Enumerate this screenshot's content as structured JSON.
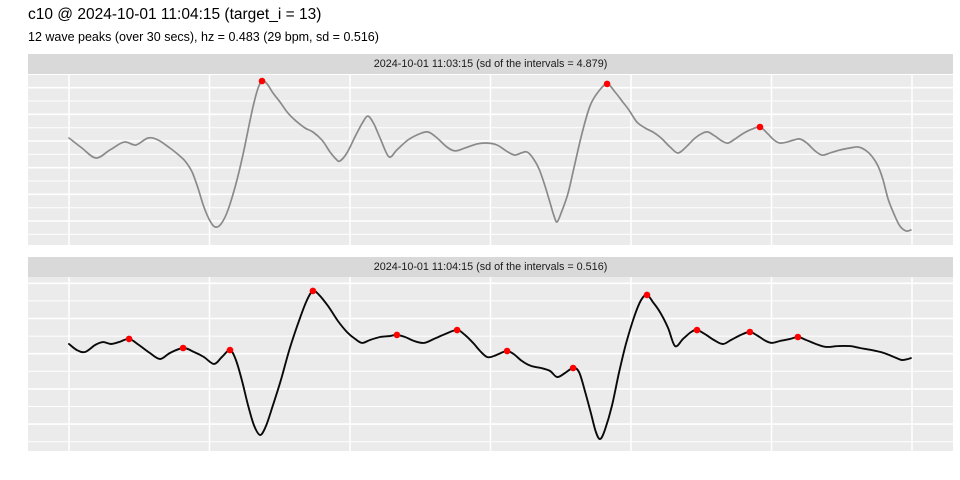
{
  "header": {
    "title": "c10 @ 2024-10-01 11:04:15 (target_i = 13)",
    "subtitle": "12 wave peaks (over 30 secs), hz = 0.483 (29 bpm, sd = 0.516)"
  },
  "colors": {
    "panel_bg": "#EBEBEB",
    "strip_bg": "#D9D9D9",
    "gridline": "#FFFFFF",
    "line_panel1": "#8A8A8A",
    "line_panel2": "#0A0A0A",
    "peak_dot": "#FF0000",
    "text": "#000000"
  },
  "chart_data": [
    {
      "type": "line",
      "strip_label": "2024-10-01 11:03:15 (sd of the intervals = 4.879)",
      "x_unit": "seconds",
      "x_range": [
        0,
        30
      ],
      "y_unit": "normalized amplitude (0 = panel bottom, 1 = panel top)",
      "line_color": "#8A8A8A",
      "peak_count": 3,
      "points": [
        [
          0,
          0.626
        ],
        [
          0.46,
          0.567
        ],
        [
          0.96,
          0.509
        ],
        [
          1.46,
          0.556
        ],
        [
          1.96,
          0.602
        ],
        [
          2.38,
          0.585
        ],
        [
          2.81,
          0.626
        ],
        [
          3.17,
          0.614
        ],
        [
          3.59,
          0.567
        ],
        [
          3.95,
          0.52
        ],
        [
          4.16,
          0.485
        ],
        [
          4.38,
          0.427
        ],
        [
          4.59,
          0.333
        ],
        [
          4.8,
          0.222
        ],
        [
          5.02,
          0.14
        ],
        [
          5.2,
          0.105
        ],
        [
          5.41,
          0.123
        ],
        [
          5.66,
          0.205
        ],
        [
          5.94,
          0.357
        ],
        [
          6.19,
          0.526
        ],
        [
          6.41,
          0.702
        ],
        [
          6.58,
          0.83
        ],
        [
          6.73,
          0.918
        ],
        [
          6.87,
          0.959
        ],
        [
          7.05,
          0.942
        ],
        [
          7.26,
          0.889
        ],
        [
          7.51,
          0.836
        ],
        [
          7.79,
          0.772
        ],
        [
          8.08,
          0.725
        ],
        [
          8.4,
          0.684
        ],
        [
          8.68,
          0.661
        ],
        [
          9,
          0.614
        ],
        [
          9.29,
          0.544
        ],
        [
          9.5,
          0.503
        ],
        [
          9.64,
          0.491
        ],
        [
          9.89,
          0.538
        ],
        [
          10.21,
          0.643
        ],
        [
          10.46,
          0.719
        ],
        [
          10.64,
          0.754
        ],
        [
          10.85,
          0.708
        ],
        [
          11.1,
          0.614
        ],
        [
          11.39,
          0.515
        ],
        [
          11.67,
          0.556
        ],
        [
          12.06,
          0.614
        ],
        [
          12.46,
          0.649
        ],
        [
          12.78,
          0.661
        ],
        [
          13.1,
          0.626
        ],
        [
          13.45,
          0.573
        ],
        [
          13.74,
          0.55
        ],
        [
          14.09,
          0.567
        ],
        [
          14.52,
          0.591
        ],
        [
          14.91,
          0.596
        ],
        [
          15.23,
          0.585
        ],
        [
          15.62,
          0.544
        ],
        [
          15.87,
          0.526
        ],
        [
          16.09,
          0.538
        ],
        [
          16.3,
          0.544
        ],
        [
          16.51,
          0.509
        ],
        [
          16.73,
          0.444
        ],
        [
          16.94,
          0.345
        ],
        [
          17.12,
          0.246
        ],
        [
          17.26,
          0.17
        ],
        [
          17.37,
          0.135
        ],
        [
          17.54,
          0.199
        ],
        [
          17.76,
          0.304
        ],
        [
          18.01,
          0.48
        ],
        [
          18.26,
          0.655
        ],
        [
          18.54,
          0.813
        ],
        [
          18.83,
          0.895
        ],
        [
          19.15,
          0.942
        ],
        [
          19.43,
          0.895
        ],
        [
          19.68,
          0.842
        ],
        [
          19.93,
          0.789
        ],
        [
          20.21,
          0.719
        ],
        [
          20.5,
          0.684
        ],
        [
          20.78,
          0.661
        ],
        [
          21.07,
          0.626
        ],
        [
          21.39,
          0.573
        ],
        [
          21.67,
          0.538
        ],
        [
          21.96,
          0.573
        ],
        [
          22.28,
          0.626
        ],
        [
          22.56,
          0.655
        ],
        [
          22.74,
          0.661
        ],
        [
          22.99,
          0.637
        ],
        [
          23.24,
          0.608
        ],
        [
          23.45,
          0.596
        ],
        [
          23.7,
          0.62
        ],
        [
          24.02,
          0.655
        ],
        [
          24.31,
          0.678
        ],
        [
          24.59,
          0.69
        ],
        [
          24.84,
          0.655
        ],
        [
          25.09,
          0.614
        ],
        [
          25.3,
          0.596
        ],
        [
          25.55,
          0.602
        ],
        [
          25.8,
          0.614
        ],
        [
          26.01,
          0.62
        ],
        [
          26.26,
          0.596
        ],
        [
          26.55,
          0.55
        ],
        [
          26.8,
          0.526
        ],
        [
          27.08,
          0.538
        ],
        [
          27.44,
          0.556
        ],
        [
          27.79,
          0.567
        ],
        [
          28.08,
          0.573
        ],
        [
          28.33,
          0.556
        ],
        [
          28.57,
          0.52
        ],
        [
          28.79,
          0.462
        ],
        [
          28.97,
          0.38
        ],
        [
          29.15,
          0.269
        ],
        [
          29.36,
          0.181
        ],
        [
          29.57,
          0.111
        ],
        [
          29.79,
          0.082
        ],
        [
          29.96,
          0.088
        ]
      ],
      "peaks": [
        [
          6.87,
          0.959
        ],
        [
          19.15,
          0.942
        ],
        [
          24.59,
          0.69
        ]
      ]
    },
    {
      "type": "line",
      "strip_label": "2024-10-01 11:04:15 (sd of the intervals = 0.516)",
      "x_unit": "seconds",
      "x_range": [
        0,
        30
      ],
      "y_unit": "normalized amplitude (0 = panel bottom, 1 = panel top)",
      "line_color": "#0A0A0A",
      "peak_count": 12,
      "points": [
        [
          0,
          0.615
        ],
        [
          0.28,
          0.58
        ],
        [
          0.57,
          0.569
        ],
        [
          0.93,
          0.609
        ],
        [
          1.21,
          0.626
        ],
        [
          1.49,
          0.615
        ],
        [
          1.78,
          0.626
        ],
        [
          2.14,
          0.644
        ],
        [
          2.49,
          0.609
        ],
        [
          2.88,
          0.563
        ],
        [
          3.24,
          0.529
        ],
        [
          3.59,
          0.563
        ],
        [
          4.06,
          0.592
        ],
        [
          4.45,
          0.569
        ],
        [
          4.8,
          0.54
        ],
        [
          5.16,
          0.5
        ],
        [
          5.44,
          0.54
        ],
        [
          5.73,
          0.58
        ],
        [
          5.94,
          0.523
        ],
        [
          6.16,
          0.402
        ],
        [
          6.37,
          0.264
        ],
        [
          6.58,
          0.149
        ],
        [
          6.8,
          0.092
        ],
        [
          7.01,
          0.144
        ],
        [
          7.26,
          0.264
        ],
        [
          7.54,
          0.408
        ],
        [
          7.86,
          0.592
        ],
        [
          8.22,
          0.764
        ],
        [
          8.47,
          0.868
        ],
        [
          8.68,
          0.92
        ],
        [
          8.9,
          0.897
        ],
        [
          9.22,
          0.833
        ],
        [
          9.57,
          0.747
        ],
        [
          9.89,
          0.684
        ],
        [
          10.18,
          0.644
        ],
        [
          10.43,
          0.621
        ],
        [
          10.71,
          0.638
        ],
        [
          11.07,
          0.655
        ],
        [
          11.42,
          0.661
        ],
        [
          11.67,
          0.667
        ],
        [
          11.96,
          0.655
        ],
        [
          12.28,
          0.632
        ],
        [
          12.63,
          0.621
        ],
        [
          12.99,
          0.644
        ],
        [
          13.38,
          0.672
        ],
        [
          13.81,
          0.695
        ],
        [
          14.09,
          0.667
        ],
        [
          14.38,
          0.621
        ],
        [
          14.63,
          0.575
        ],
        [
          14.88,
          0.54
        ],
        [
          15.12,
          0.546
        ],
        [
          15.37,
          0.563
        ],
        [
          15.59,
          0.575
        ],
        [
          15.83,
          0.557
        ],
        [
          16.12,
          0.517
        ],
        [
          16.44,
          0.489
        ],
        [
          16.8,
          0.477
        ],
        [
          17.12,
          0.46
        ],
        [
          17.37,
          0.425
        ],
        [
          17.65,
          0.448
        ],
        [
          17.94,
          0.477
        ],
        [
          18.15,
          0.454
        ],
        [
          18.36,
          0.345
        ],
        [
          18.58,
          0.213
        ],
        [
          18.75,
          0.109
        ],
        [
          18.9,
          0.069
        ],
        [
          19.07,
          0.121
        ],
        [
          19.32,
          0.259
        ],
        [
          19.57,
          0.448
        ],
        [
          19.82,
          0.615
        ],
        [
          20.11,
          0.77
        ],
        [
          20.36,
          0.868
        ],
        [
          20.57,
          0.897
        ],
        [
          20.78,
          0.856
        ],
        [
          21.03,
          0.799
        ],
        [
          21.32,
          0.707
        ],
        [
          21.57,
          0.603
        ],
        [
          21.85,
          0.644
        ],
        [
          22.14,
          0.684
        ],
        [
          22.35,
          0.695
        ],
        [
          22.63,
          0.672
        ],
        [
          22.95,
          0.638
        ],
        [
          23.27,
          0.615
        ],
        [
          23.56,
          0.638
        ],
        [
          23.91,
          0.667
        ],
        [
          24.23,
          0.684
        ],
        [
          24.52,
          0.661
        ],
        [
          24.8,
          0.632
        ],
        [
          25.02,
          0.621
        ],
        [
          25.3,
          0.632
        ],
        [
          25.66,
          0.644
        ],
        [
          25.94,
          0.655
        ],
        [
          26.23,
          0.638
        ],
        [
          26.58,
          0.615
        ],
        [
          26.94,
          0.598
        ],
        [
          27.37,
          0.603
        ],
        [
          27.79,
          0.603
        ],
        [
          28.15,
          0.592
        ],
        [
          28.57,
          0.58
        ],
        [
          29,
          0.563
        ],
        [
          29.36,
          0.54
        ],
        [
          29.64,
          0.523
        ],
        [
          29.86,
          0.529
        ],
        [
          29.96,
          0.534
        ]
      ],
      "peaks": [
        [
          2.14,
          0.644
        ],
        [
          4.06,
          0.592
        ],
        [
          5.73,
          0.58
        ],
        [
          8.68,
          0.92
        ],
        [
          11.67,
          0.667
        ],
        [
          13.81,
          0.695
        ],
        [
          15.59,
          0.575
        ],
        [
          17.94,
          0.477
        ],
        [
          20.57,
          0.897
        ],
        [
          22.35,
          0.695
        ],
        [
          24.23,
          0.684
        ],
        [
          25.94,
          0.655
        ]
      ]
    }
  ]
}
